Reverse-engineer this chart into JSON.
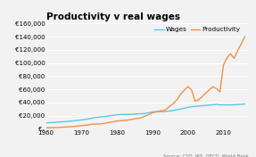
{
  "title": "Productivity v real wages",
  "legend_wages": "Wages",
  "legend_productivity": "Productivity",
  "source_text": "Source: CSO, IRS, OECD, World Bank",
  "wages_color": "#5bc8e8",
  "productivity_color": "#f0904a",
  "background_color": "#f2f2f2",
  "xlim": [
    1960,
    2017
  ],
  "ylim": [
    0,
    160000
  ],
  "yticks": [
    0,
    20000,
    40000,
    60000,
    80000,
    100000,
    120000,
    140000,
    160000
  ],
  "xticks": [
    1960,
    1970,
    1980,
    1990,
    2000,
    2010
  ],
  "years": [
    1960,
    1961,
    1962,
    1963,
    1964,
    1965,
    1966,
    1967,
    1968,
    1969,
    1970,
    1971,
    1972,
    1973,
    1974,
    1975,
    1976,
    1977,
    1978,
    1979,
    1980,
    1981,
    1982,
    1983,
    1984,
    1985,
    1986,
    1987,
    1988,
    1989,
    1990,
    1991,
    1992,
    1993,
    1994,
    1995,
    1996,
    1997,
    1998,
    1999,
    2000,
    2001,
    2002,
    2003,
    2004,
    2005,
    2006,
    2007,
    2008,
    2009,
    2010,
    2011,
    2012,
    2013,
    2014,
    2015,
    2016
  ],
  "wages": [
    9000,
    9300,
    9600,
    9900,
    10300,
    10700,
    11100,
    11600,
    12200,
    12800,
    13400,
    14100,
    15000,
    16100,
    17100,
    17800,
    18200,
    18800,
    19600,
    20500,
    21200,
    21600,
    21800,
    21600,
    22000,
    22300,
    22500,
    22800,
    23500,
    24500,
    25500,
    26000,
    26200,
    26000,
    26500,
    27200,
    28000,
    29000,
    30000,
    31200,
    32500,
    33500,
    34000,
    34500,
    35000,
    35500,
    36000,
    36500,
    37000,
    36200,
    36500,
    36200,
    36300,
    36500,
    36800,
    37200,
    37800
  ],
  "productivity": [
    1500,
    1600,
    1700,
    1900,
    2100,
    2400,
    2700,
    3100,
    3600,
    4100,
    4700,
    5300,
    6000,
    6900,
    7300,
    7100,
    7800,
    8800,
    9800,
    10800,
    11800,
    12200,
    12700,
    13200,
    14000,
    15200,
    15800,
    17200,
    19500,
    21500,
    24500,
    25500,
    27000,
    27500,
    30000,
    35000,
    39000,
    45000,
    53000,
    59000,
    64000,
    59000,
    42000,
    44000,
    49000,
    54000,
    59000,
    64000,
    61000,
    56000,
    97000,
    108000,
    114000,
    107000,
    119000,
    129000,
    140000
  ]
}
